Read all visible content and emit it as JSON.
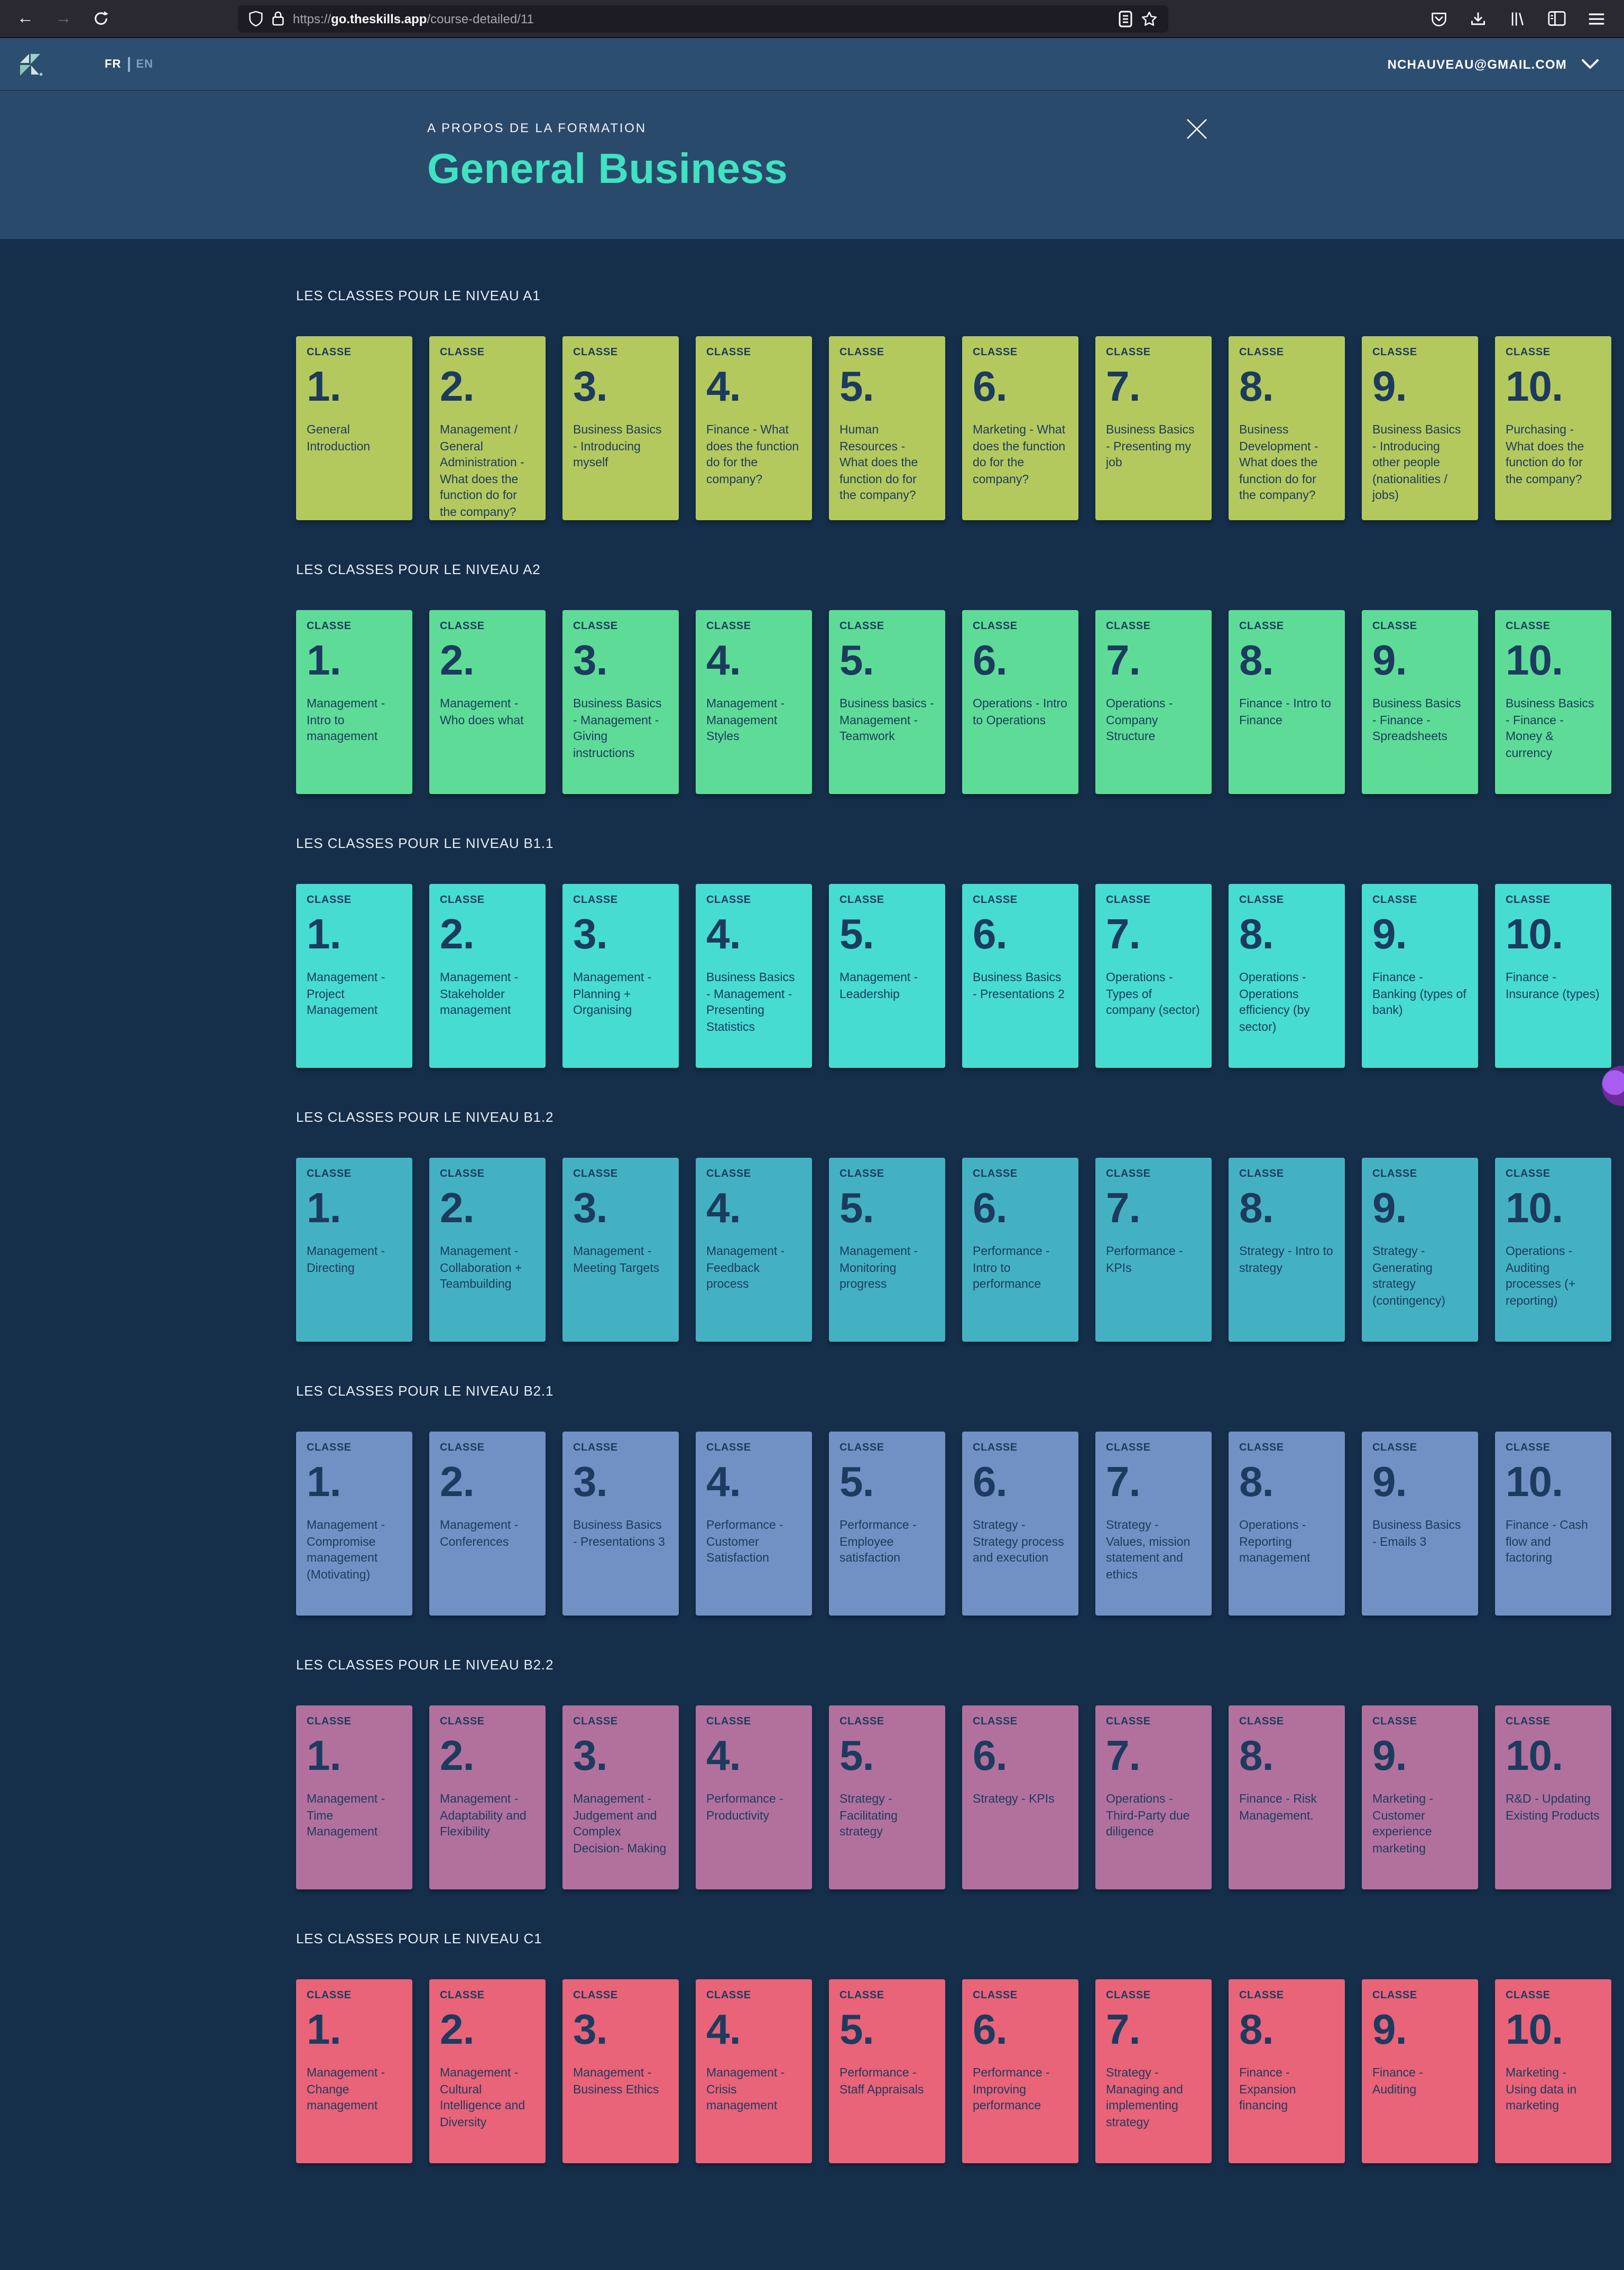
{
  "browser": {
    "url_scheme": "https://",
    "url_host": "go.theskills.app",
    "url_path": "/course-detailed/11"
  },
  "header": {
    "lang_fr": "FR",
    "lang_en": "EN",
    "account_email": "NCHAUVEAU@GMAIL.COM"
  },
  "hero": {
    "eyebrow": "A PROPOS DE LA FORMATION",
    "title": "General Business"
  },
  "card_tag": "CLASSE",
  "colors": {
    "page_bg": "#152f4b",
    "nav_bg": "#2c4e70",
    "hero_bg": "#2a4a6c",
    "title_accent": "#3fe2c1",
    "card_text": "#1c3b5e"
  },
  "sections": [
    {
      "label": "LES CLASSES POUR LE NIVEAU A1",
      "color": "#b4c95d",
      "cards": [
        {
          "num": "1.",
          "title": "General Introduction"
        },
        {
          "num": "2.",
          "title": "Management / General Administration - What does the function do for the company?"
        },
        {
          "num": "3.",
          "title": "Business Basics - Introducing myself"
        },
        {
          "num": "4.",
          "title": "Finance - What does the function do for the company?"
        },
        {
          "num": "5.",
          "title": "Human Resources - What does the function do for the company?"
        },
        {
          "num": "6.",
          "title": "Marketing - What does the function do for the company?"
        },
        {
          "num": "7.",
          "title": "Business Basics - Presenting my job"
        },
        {
          "num": "8.",
          "title": "Business Development - What does the function do for the company?"
        },
        {
          "num": "9.",
          "title": "Business Basics - Introducing other people (nationalities / jobs)"
        },
        {
          "num": "10.",
          "title": "Purchasing - What does the function do for the company?"
        }
      ]
    },
    {
      "label": "LES CLASSES POUR LE NIVEAU A2",
      "color": "#5edc97",
      "cards": [
        {
          "num": "1.",
          "title": "Management - Intro to management"
        },
        {
          "num": "2.",
          "title": "Management - Who does what"
        },
        {
          "num": "3.",
          "title": "Business Basics - Management - Giving instructions"
        },
        {
          "num": "4.",
          "title": "Management - Management Styles"
        },
        {
          "num": "5.",
          "title": "Business basics - Management - Teamwork"
        },
        {
          "num": "6.",
          "title": "Operations - Intro to Operations"
        },
        {
          "num": "7.",
          "title": "Operations - Company Structure"
        },
        {
          "num": "8.",
          "title": "Finance - Intro to Finance"
        },
        {
          "num": "9.",
          "title": "Business Basics - Finance - Spreadsheets"
        },
        {
          "num": "10.",
          "title": "Business Basics - Finance - Money & currency"
        }
      ]
    },
    {
      "label": "LES CLASSES POUR LE NIVEAU B1.1",
      "color": "#46dcd2",
      "cards": [
        {
          "num": "1.",
          "title": "Management - Project Management"
        },
        {
          "num": "2.",
          "title": "Management - Stakeholder management"
        },
        {
          "num": "3.",
          "title": "Management - Planning + Organising"
        },
        {
          "num": "4.",
          "title": "Business Basics - Management - Presenting Statistics"
        },
        {
          "num": "5.",
          "title": "Management - Leadership"
        },
        {
          "num": "6.",
          "title": "Business Basics - Presentations 2"
        },
        {
          "num": "7.",
          "title": "Operations - Types of company (sector)"
        },
        {
          "num": "8.",
          "title": "Operations - Operations efficiency (by sector)"
        },
        {
          "num": "9.",
          "title": "Finance - Banking (types of bank)"
        },
        {
          "num": "10.",
          "title": "Finance - Insurance (types)"
        }
      ]
    },
    {
      "label": "LES CLASSES POUR LE NIVEAU B1.2",
      "color": "#44b1c2",
      "cards": [
        {
          "num": "1.",
          "title": "Management - Directing"
        },
        {
          "num": "2.",
          "title": "Management - Collaboration + Teambuilding"
        },
        {
          "num": "3.",
          "title": "Management - Meeting Targets"
        },
        {
          "num": "4.",
          "title": "Management - Feedback process"
        },
        {
          "num": "5.",
          "title": "Management - Monitoring progress"
        },
        {
          "num": "6.",
          "title": "Performance - Intro to performance"
        },
        {
          "num": "7.",
          "title": "Performance - KPIs"
        },
        {
          "num": "8.",
          "title": "Strategy - Intro to strategy"
        },
        {
          "num": "9.",
          "title": "Strategy - Generating strategy (contingency)"
        },
        {
          "num": "10.",
          "title": "Operations - Auditing processes (+ reporting)"
        }
      ]
    },
    {
      "label": "LES CLASSES POUR LE NIVEAU B2.1",
      "color": "#7191c4",
      "cards": [
        {
          "num": "1.",
          "title": "Management - Compromise management (Motivating)"
        },
        {
          "num": "2.",
          "title": "Management - Conferences"
        },
        {
          "num": "3.",
          "title": "Business Basics - Presentations 3"
        },
        {
          "num": "4.",
          "title": "Performance - Customer Satisfaction"
        },
        {
          "num": "5.",
          "title": "Performance - Employee satisfaction"
        },
        {
          "num": "6.",
          "title": "Strategy - Strategy process and execution"
        },
        {
          "num": "7.",
          "title": "Strategy - Values, mission statement and ethics"
        },
        {
          "num": "8.",
          "title": "Operations - Reporting management"
        },
        {
          "num": "9.",
          "title": "Business Basics - Emails 3"
        },
        {
          "num": "10.",
          "title": "Finance - Cash flow and factoring"
        }
      ]
    },
    {
      "label": "LES CLASSES POUR LE NIVEAU B2.2",
      "color": "#b2719d",
      "cards": [
        {
          "num": "1.",
          "title": "Management - Time Management"
        },
        {
          "num": "2.",
          "title": "Management - Adaptability and Flexibility"
        },
        {
          "num": "3.",
          "title": "Management - Judgement and Complex Decision- Making"
        },
        {
          "num": "4.",
          "title": "Performance - Productivity"
        },
        {
          "num": "5.",
          "title": "Strategy - Facilitating strategy"
        },
        {
          "num": "6.",
          "title": "Strategy - KPIs"
        },
        {
          "num": "7.",
          "title": "Operations - Third-Party due diligence"
        },
        {
          "num": "8.",
          "title": "Finance - Risk Management."
        },
        {
          "num": "9.",
          "title": "Marketing - Customer experience marketing"
        },
        {
          "num": "10.",
          "title": "R&D - Updating Existing Products"
        }
      ]
    },
    {
      "label": "LES CLASSES POUR LE NIVEAU C1",
      "color": "#e96379",
      "cards": [
        {
          "num": "1.",
          "title": "Management - Change management"
        },
        {
          "num": "2.",
          "title": "Management - Cultural Intelligence and Diversity"
        },
        {
          "num": "3.",
          "title": "Management - Business Ethics"
        },
        {
          "num": "4.",
          "title": "Management - Crisis management"
        },
        {
          "num": "5.",
          "title": "Performance - Staff Appraisals"
        },
        {
          "num": "6.",
          "title": "Performance - Improving performance"
        },
        {
          "num": "7.",
          "title": "Strategy - Managing and implementing strategy"
        },
        {
          "num": "8.",
          "title": "Finance - Expansion financing"
        },
        {
          "num": "9.",
          "title": "Finance - Auditing"
        },
        {
          "num": "10.",
          "title": "Marketing - Using data in marketing"
        }
      ]
    }
  ]
}
